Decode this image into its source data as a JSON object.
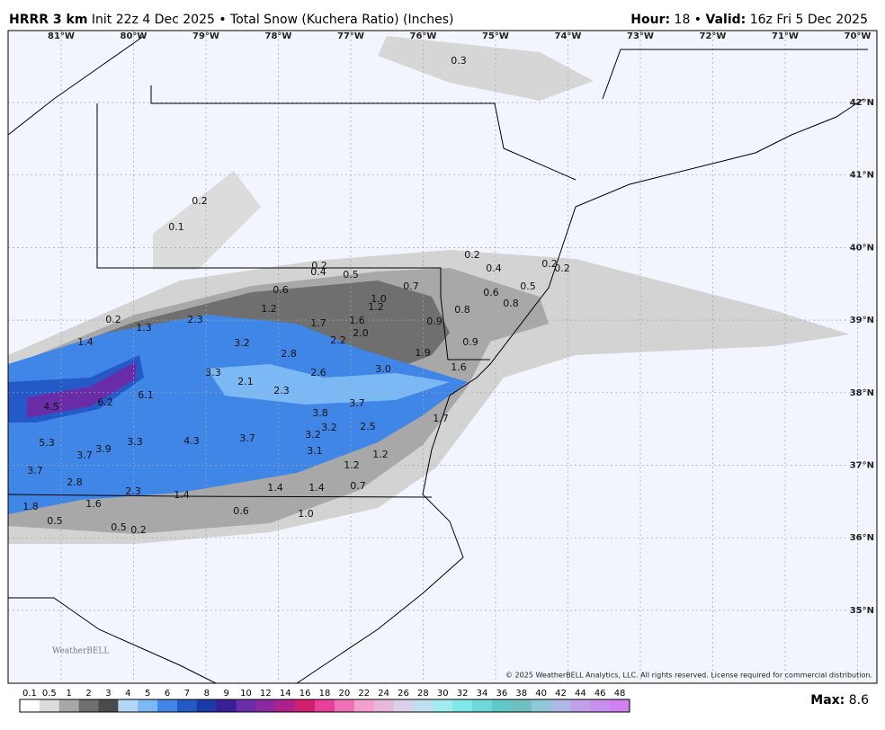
{
  "header": {
    "model": "HRRR 3 km",
    "description": "Init 22z 4 Dec 2025 • Total Snow (Kuchera Ratio) (Inches)",
    "hour_label": "Hour:",
    "hour_value": " 18 • ",
    "valid_label": "Valid:",
    "valid_value": " 16z Fri 5 Dec 2025"
  },
  "longitudes": [
    "81°W",
    "80°W",
    "79°W",
    "78°W",
    "77°W",
    "76°W",
    "75°W",
    "74°W",
    "73°W",
    "72°W",
    "71°W",
    "70°W"
  ],
  "latitudes": [
    "42°N",
    "41°N",
    "40°N",
    "39°N",
    "38°N",
    "37°N",
    "36°N",
    "35°N"
  ],
  "snow_labels": [
    "0.3",
    "0.2",
    "0.1",
    "0.2",
    "0.4",
    "0.5",
    "0.6",
    "1.0",
    "0.7",
    "1.2",
    "1.7",
    "1.6",
    "1.2",
    "2.0",
    "2.2",
    "0.9",
    "0.8",
    "0.6",
    "0.4",
    "0.2",
    "0.8",
    "0.5",
    "0.2",
    "0.2",
    "0.9",
    "1.9",
    "1.6",
    "3.0",
    "0.2",
    "1.3",
    "2.3",
    "1.4",
    "3.2",
    "2.8",
    "2.6",
    "3.3",
    "2.1",
    "2.3",
    "3.8",
    "3.7",
    "3.2",
    "3.2",
    "2.5",
    "1.7",
    "4.5",
    "6.2",
    "6.1",
    "5.3",
    "3.7",
    "3.9",
    "3.3",
    "4.3",
    "3.7",
    "3.1",
    "1.2",
    "1.2",
    "3.7",
    "2.8",
    "2.3",
    "1.4",
    "1.4",
    "1.4",
    "0.7",
    "1.6",
    "1.8",
    "0.6",
    "1.0",
    "0.5",
    "0.5",
    "0.2"
  ],
  "logo": "WeatherBELL",
  "copyright": "© 2025 WeatherBELL Analytics, LLC. All rights reserved. License required for commercial distribution.",
  "colorbar": [
    "0.1",
    "0.5",
    "1",
    "2",
    "3",
    "4",
    "5",
    "6",
    "7",
    "8",
    "9",
    "10",
    "12",
    "14",
    "16",
    "18",
    "20",
    "22",
    "24",
    "26",
    "28",
    "30",
    "32",
    "34",
    "36",
    "38",
    "40",
    "42",
    "44",
    "46",
    "48"
  ],
  "footer": {
    "max_label": "Max:",
    "max_value": 8.6
  }
}
